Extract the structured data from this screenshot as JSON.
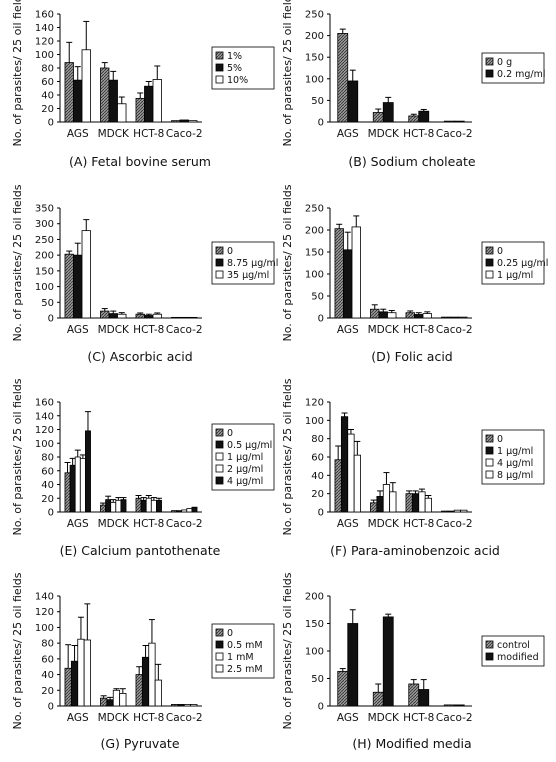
{
  "figure": {
    "ylabel": "No. of parasites/ 25 oil fields",
    "categories": [
      "AGS",
      "MDCK",
      "HCT-8",
      "Caco-2"
    ],
    "colors": {
      "hatched": "#7a7a7a",
      "black": "#111111",
      "white": "#ffffff"
    }
  },
  "chart_data": [
    {
      "panel": "A",
      "caption": "(A) Fetal bovine serum",
      "type": "bar",
      "ylim": [
        0,
        160
      ],
      "yticks": [
        0,
        20,
        40,
        60,
        80,
        100,
        120,
        140,
        160
      ],
      "ylabel": "No. of parasites/ 25 oil fields",
      "categories": [
        "AGS",
        "MDCK",
        "HCT-8",
        "Caco-2"
      ],
      "legend_position": "right",
      "series": [
        {
          "name": "1%",
          "fill": "hatched",
          "values": [
            88,
            80,
            35,
            2
          ],
          "errors": [
            30,
            8,
            8,
            0
          ]
        },
        {
          "name": "5%",
          "fill": "black",
          "values": [
            62,
            62,
            53,
            3
          ],
          "errors": [
            20,
            13,
            7,
            0
          ]
        },
        {
          "name": "10%",
          "fill": "white",
          "values": [
            107,
            27,
            63,
            2
          ],
          "errors": [
            42,
            10,
            20,
            0
          ]
        }
      ]
    },
    {
      "panel": "B",
      "caption": "(B) Sodium choleate",
      "type": "bar",
      "ylim": [
        0,
        250
      ],
      "yticks": [
        0,
        50,
        100,
        150,
        200,
        250
      ],
      "ylabel": "No. of parasites/ 25 oil fields",
      "categories": [
        "AGS",
        "MDCK",
        "HCT-8",
        "Caco-2"
      ],
      "legend_position": "right",
      "series": [
        {
          "name": "0 g",
          "fill": "hatched",
          "values": [
            205,
            22,
            14,
            2
          ],
          "errors": [
            10,
            8,
            4,
            0
          ]
        },
        {
          "name": "0.2 mg/ml",
          "fill": "black",
          "values": [
            95,
            45,
            25,
            2
          ],
          "errors": [
            25,
            12,
            4,
            0
          ]
        }
      ]
    },
    {
      "panel": "C",
      "caption": "(C) Ascorbic acid",
      "type": "bar",
      "ylim": [
        0,
        350
      ],
      "yticks": [
        0,
        50,
        100,
        150,
        200,
        250,
        300,
        350
      ],
      "ylabel": "No. of parasites/ 25 oil fields",
      "categories": [
        "AGS",
        "MDCK",
        "HCT-8",
        "Caco-2"
      ],
      "legend_position": "right",
      "series": [
        {
          "name": "0",
          "fill": "hatched",
          "values": [
            203,
            22,
            12,
            2
          ],
          "errors": [
            10,
            8,
            4,
            0
          ]
        },
        {
          "name": "8.75 μg/ml",
          "fill": "black",
          "values": [
            200,
            14,
            8,
            2
          ],
          "errors": [
            38,
            8,
            4,
            0
          ]
        },
        {
          "name": "35 μg/ml",
          "fill": "white",
          "values": [
            278,
            12,
            12,
            2
          ],
          "errors": [
            35,
            5,
            4,
            0
          ]
        }
      ]
    },
    {
      "panel": "D",
      "caption": "(D) Folic acid",
      "type": "bar",
      "ylim": [
        0,
        250
      ],
      "yticks": [
        0,
        50,
        100,
        150,
        200,
        250
      ],
      "ylabel": "No. of parasites/ 25 oil fields",
      "categories": [
        "AGS",
        "MDCK",
        "HCT-8",
        "Caco-2"
      ],
      "legend_position": "right",
      "series": [
        {
          "name": "0",
          "fill": "hatched",
          "values": [
            203,
            20,
            12,
            2
          ],
          "errors": [
            10,
            10,
            4,
            0
          ]
        },
        {
          "name": "0.25 μg/ml",
          "fill": "black",
          "values": [
            155,
            14,
            8,
            2
          ],
          "errors": [
            40,
            6,
            4,
            0
          ]
        },
        {
          "name": "1 μg/ml",
          "fill": "white",
          "values": [
            207,
            12,
            10,
            2
          ],
          "errors": [
            25,
            5,
            4,
            0
          ]
        }
      ]
    },
    {
      "panel": "E",
      "caption": "(E) Calcium pantothenate",
      "type": "bar",
      "ylim": [
        0,
        160
      ],
      "yticks": [
        0,
        20,
        40,
        60,
        80,
        100,
        120,
        140,
        160
      ],
      "ylabel": "No. of parasites/ 25 oil fields",
      "categories": [
        "AGS",
        "MDCK",
        "HCT-8",
        "Caco-2"
      ],
      "legend_position": "right",
      "series": [
        {
          "name": "0",
          "fill": "hatched",
          "values": [
            57,
            10,
            20,
            2
          ],
          "errors": [
            15,
            3,
            4,
            0
          ]
        },
        {
          "name": "0.5 μg/ml",
          "fill": "black",
          "values": [
            68,
            18,
            17,
            2
          ],
          "errors": [
            10,
            5,
            4,
            0
          ]
        },
        {
          "name": "1 μg/ml",
          "fill": "white",
          "values": [
            80,
            14,
            20,
            3
          ],
          "errors": [
            10,
            4,
            4,
            0
          ]
        },
        {
          "name": "2 μg/ml",
          "fill": "white",
          "values": [
            78,
            17,
            17,
            5
          ],
          "errors": [
            5,
            4,
            4,
            0
          ]
        },
        {
          "name": "4 μg/ml",
          "fill": "black",
          "values": [
            118,
            18,
            17,
            7
          ],
          "errors": [
            28,
            3,
            3,
            0
          ]
        }
      ]
    },
    {
      "panel": "F",
      "caption": "(F) Para-aminobenzoic acid",
      "type": "bar",
      "ylim": [
        0,
        120
      ],
      "yticks": [
        0,
        20,
        40,
        60,
        80,
        100,
        120
      ],
      "ylabel": "No. of parasites/ 25 oil fields",
      "categories": [
        "AGS",
        "MDCK",
        "HCT-8",
        "Caco-2"
      ],
      "legend_position": "right",
      "series": [
        {
          "name": "0",
          "fill": "hatched",
          "values": [
            57,
            10,
            20,
            1
          ],
          "errors": [
            15,
            3,
            3,
            0
          ]
        },
        {
          "name": "1 μg/ml",
          "fill": "black",
          "values": [
            104,
            17,
            20,
            1
          ],
          "errors": [
            4,
            6,
            3,
            0
          ]
        },
        {
          "name": "4 μg/ml",
          "fill": "white",
          "values": [
            85,
            30,
            22,
            2
          ],
          "errors": [
            5,
            13,
            3,
            0
          ]
        },
        {
          "name": "8 μg/ml",
          "fill": "white",
          "values": [
            62,
            22,
            15,
            2
          ],
          "errors": [
            15,
            10,
            3,
            0
          ]
        }
      ]
    },
    {
      "panel": "G",
      "caption": "(G) Pyruvate",
      "type": "bar",
      "ylim": [
        0,
        140
      ],
      "yticks": [
        0,
        20,
        40,
        60,
        80,
        100,
        120,
        140
      ],
      "ylabel": "No. of parasites/ 25 oil fields",
      "categories": [
        "AGS",
        "MDCK",
        "HCT-8",
        "Caco-2"
      ],
      "legend_position": "right",
      "series": [
        {
          "name": "0",
          "fill": "hatched",
          "values": [
            48,
            10,
            40,
            2
          ],
          "errors": [
            30,
            3,
            10,
            0
          ]
        },
        {
          "name": "0.5 mM",
          "fill": "black",
          "values": [
            57,
            8,
            62,
            2
          ],
          "errors": [
            20,
            3,
            15,
            0
          ]
        },
        {
          "name": "1 mM",
          "fill": "white",
          "values": [
            85,
            20,
            80,
            2
          ],
          "errors": [
            28,
            2,
            30,
            0
          ]
        },
        {
          "name": "2.5 mM",
          "fill": "white",
          "values": [
            84,
            16,
            33,
            2
          ],
          "errors": [
            46,
            6,
            20,
            0
          ]
        }
      ]
    },
    {
      "panel": "H",
      "caption": "(H) Modified media",
      "type": "bar",
      "ylim": [
        0,
        200
      ],
      "yticks": [
        0,
        50,
        100,
        150,
        200
      ],
      "ylabel": "No. of parasites/ 25 oil fields",
      "categories": [
        "AGS",
        "MDCK",
        "HCT-8",
        "Caco-2"
      ],
      "legend_position": "right",
      "series": [
        {
          "name": "control",
          "fill": "hatched",
          "values": [
            63,
            25,
            40,
            2
          ],
          "errors": [
            5,
            15,
            8,
            0
          ]
        },
        {
          "name": "modified",
          "fill": "black",
          "values": [
            150,
            162,
            30,
            2
          ],
          "errors": [
            25,
            5,
            18,
            0
          ]
        }
      ]
    }
  ]
}
